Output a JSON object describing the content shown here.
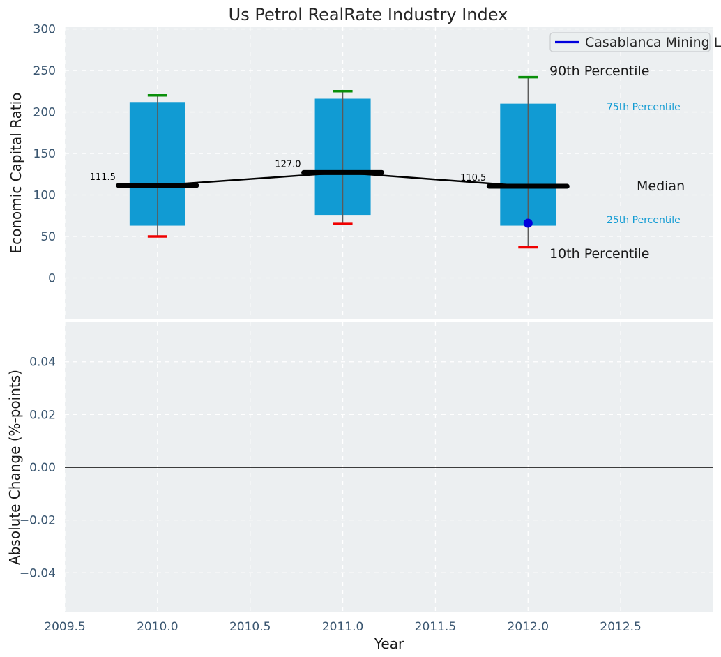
{
  "figure": {
    "title": "Us Petrol RealRate Industry Index",
    "legend": {
      "label": "Casablanca Mining Ltd"
    },
    "colors": {
      "bar": "#119bd3",
      "cap_90th": "#0a8f0a",
      "cap_10th": "#f00000",
      "median_line": "#000000",
      "whisker": "#5a5a5a",
      "company_blue": "#0000dd",
      "axes_background": "#eceff1",
      "gridline": "#ffffff",
      "tick_label": "#3a5670",
      "text": "#262626",
      "zero_line": "#000000"
    }
  },
  "chart_data": [
    {
      "type": "bar",
      "subtype": "percentile-boxes-with-median-line",
      "title": "Us Petrol RealRate Industry Index",
      "ylabel": "Economic Capital Ratio",
      "xlabel": "",
      "xlim": [
        2009.5,
        2013.0
      ],
      "ylim": [
        -50,
        303
      ],
      "grid": true,
      "yticks": [
        {
          "value": 300,
          "label": "300"
        },
        {
          "value": 250,
          "label": "250"
        },
        {
          "value": 200,
          "label": "200"
        },
        {
          "value": 150,
          "label": "150"
        },
        {
          "value": 100,
          "label": "100"
        },
        {
          "value": 50,
          "label": "50"
        },
        {
          "value": 0,
          "label": "0"
        }
      ],
      "xticks": [
        {
          "value": 2009.5,
          "label": ""
        },
        {
          "value": 2010.0,
          "label": ""
        },
        {
          "value": 2010.5,
          "label": ""
        },
        {
          "value": 2011.0,
          "label": ""
        },
        {
          "value": 2011.5,
          "label": ""
        },
        {
          "value": 2012.0,
          "label": ""
        },
        {
          "value": 2012.5,
          "label": ""
        }
      ],
      "boxes": [
        {
          "x": 2010,
          "p10": 50,
          "p25": 63,
          "median": 111.5,
          "p75": 212,
          "p90": 220,
          "median_label": "111.5"
        },
        {
          "x": 2011,
          "p10": 65,
          "p25": 76,
          "median": 127.0,
          "p75": 216,
          "p90": 225,
          "median_label": "127.0"
        },
        {
          "x": 2012,
          "p10": 37,
          "p25": 63,
          "median": 110.5,
          "p75": 210,
          "p90": 242,
          "median_label": "110.5"
        }
      ],
      "median_series": {
        "x": [
          2010,
          2011,
          2012
        ],
        "values": [
          111.5,
          127.0,
          110.5
        ]
      },
      "company_point": {
        "name": "Casablanca Mining Ltd",
        "x": 2012,
        "value": 66
      },
      "percentile_labels": {
        "p90": "90th Percentile",
        "p75": "75th Percentile",
        "median": "Median",
        "p25": "25th Percentile",
        "p10": "10th Percentile"
      },
      "legend": {
        "entries": [
          {
            "label": "Casablanca Mining Ltd",
            "color": "#0000dd",
            "style": "line"
          }
        ],
        "position": "upper right"
      }
    },
    {
      "type": "line",
      "subtype": "empty-panel-with-zero-reference",
      "title": "",
      "ylabel": "Absolute Change (%-points)",
      "xlabel": "Year",
      "xlim": [
        2009.5,
        2013.0
      ],
      "ylim": [
        -0.055,
        0.055
      ],
      "grid": true,
      "series": [],
      "zero_line": {
        "value": 0.0,
        "color": "#000000"
      },
      "yticks": [
        {
          "value": 0.04,
          "label": "0.04"
        },
        {
          "value": 0.02,
          "label": "0.02"
        },
        {
          "value": 0.0,
          "label": "0.00"
        },
        {
          "value": -0.02,
          "label": "−0.02"
        },
        {
          "value": -0.04,
          "label": "−0.04"
        }
      ],
      "xticks": [
        {
          "value": 2009.5,
          "label": "2009.5"
        },
        {
          "value": 2010.0,
          "label": "2010.0"
        },
        {
          "value": 2010.5,
          "label": "2010.5"
        },
        {
          "value": 2011.0,
          "label": "2011.0"
        },
        {
          "value": 2011.5,
          "label": "2011.5"
        },
        {
          "value": 2012.0,
          "label": "2012.0"
        },
        {
          "value": 2012.5,
          "label": "2012.5"
        }
      ]
    }
  ]
}
